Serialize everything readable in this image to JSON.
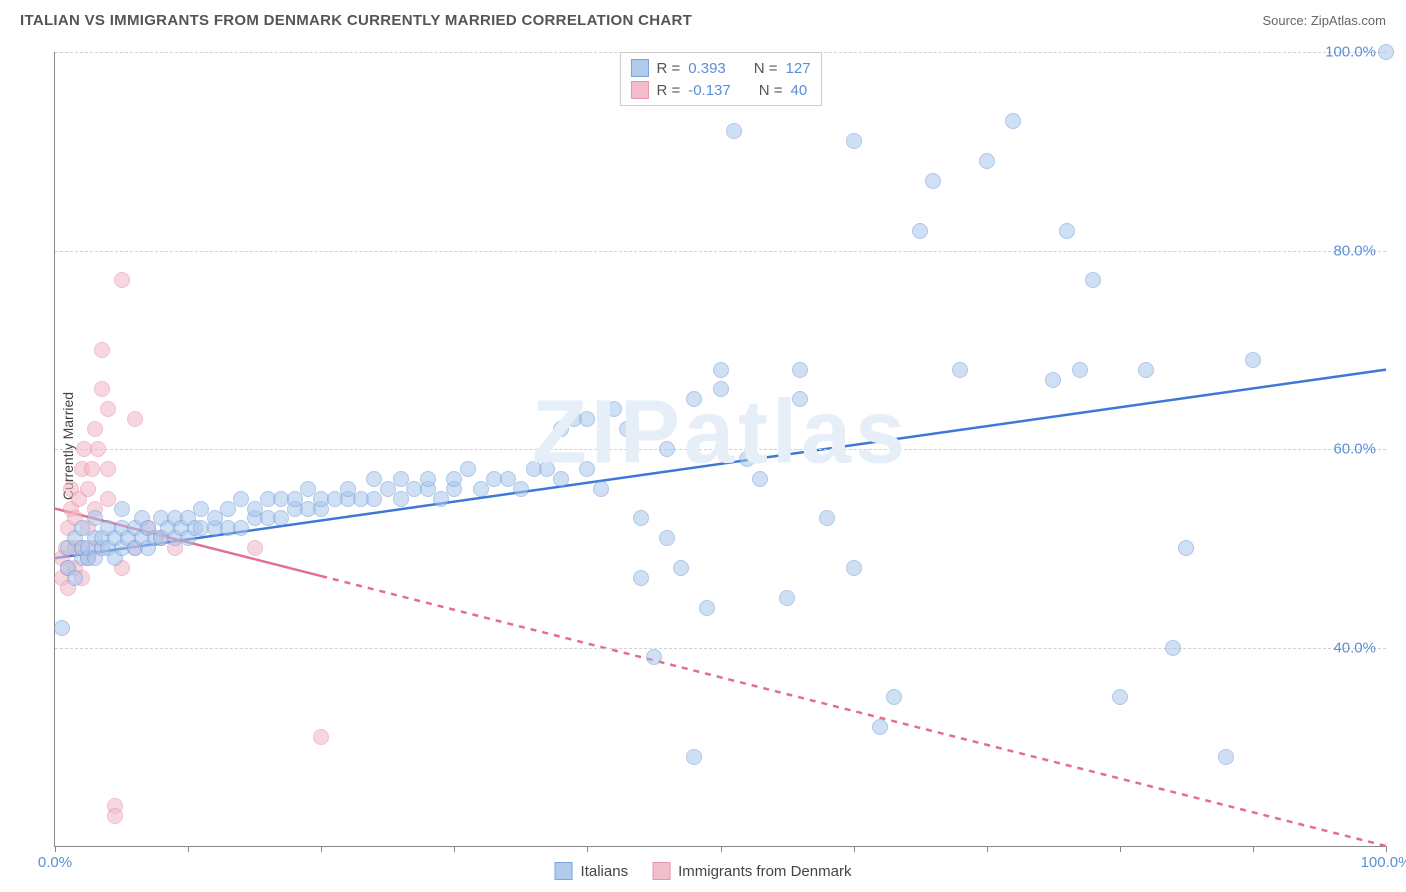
{
  "header": {
    "title": "ITALIAN VS IMMIGRANTS FROM DENMARK CURRENTLY MARRIED CORRELATION CHART",
    "source_prefix": "Source: ",
    "source_name": "ZipAtlas.com"
  },
  "ylabel": "Currently Married",
  "watermark": {
    "text": "ZIPatlas",
    "color": "#e6eef8"
  },
  "chart": {
    "type": "scatter",
    "xlim": [
      0,
      100
    ],
    "ylim": [
      20,
      100
    ],
    "background_color": "#ffffff",
    "grid_color": "#d0d0d0",
    "axis_color": "#888888",
    "point_radius": 8,
    "point_stroke_width": 1.2,
    "trend_line_width": 2.5,
    "xticks": [
      0,
      10,
      20,
      30,
      40,
      50,
      60,
      70,
      80,
      90,
      100
    ],
    "xtick_labels": {
      "0": "0.0%",
      "100": "100.0%"
    },
    "yticks": [
      40,
      60,
      80,
      100
    ],
    "ytick_labels": {
      "40": "40.0%",
      "60": "60.0%",
      "80": "80.0%",
      "100": "100.0%"
    },
    "tick_label_color": "#5b8fd6",
    "tick_label_fontsize": 15
  },
  "series": {
    "italians": {
      "label": "Italians",
      "fill_color": "#a9c6ec",
      "stroke_color": "#6e9bd8",
      "fill_opacity": 0.55,
      "R": "0.393",
      "N": "127",
      "trend": {
        "x1": 0,
        "y1": 49,
        "x2": 100,
        "y2": 68,
        "solid_until_x": 100,
        "color": "#3d78d6"
      },
      "points": [
        [
          0.5,
          42
        ],
        [
          1,
          48
        ],
        [
          1,
          50
        ],
        [
          1.5,
          47
        ],
        [
          1.5,
          51
        ],
        [
          2,
          49
        ],
        [
          2,
          50
        ],
        [
          2,
          52
        ],
        [
          2.5,
          49
        ],
        [
          2.5,
          50
        ],
        [
          3,
          49
        ],
        [
          3,
          51
        ],
        [
          3,
          53
        ],
        [
          3.5,
          50
        ],
        [
          3.5,
          51
        ],
        [
          4,
          50
        ],
        [
          4,
          52
        ],
        [
          4.5,
          49
        ],
        [
          4.5,
          51
        ],
        [
          5,
          50
        ],
        [
          5,
          52
        ],
        [
          5,
          54
        ],
        [
          5.5,
          51
        ],
        [
          6,
          50
        ],
        [
          6,
          52
        ],
        [
          6.5,
          51
        ],
        [
          6.5,
          53
        ],
        [
          7,
          50
        ],
        [
          7,
          52
        ],
        [
          7.5,
          51
        ],
        [
          8,
          51
        ],
        [
          8,
          53
        ],
        [
          8.5,
          52
        ],
        [
          9,
          51
        ],
        [
          9,
          53
        ],
        [
          9.5,
          52
        ],
        [
          10,
          51
        ],
        [
          10,
          53
        ],
        [
          10.5,
          52
        ],
        [
          11,
          52
        ],
        [
          11,
          54
        ],
        [
          12,
          52
        ],
        [
          12,
          53
        ],
        [
          13,
          52
        ],
        [
          13,
          54
        ],
        [
          14,
          52
        ],
        [
          14,
          55
        ],
        [
          15,
          53
        ],
        [
          15,
          54
        ],
        [
          16,
          53
        ],
        [
          16,
          55
        ],
        [
          17,
          53
        ],
        [
          17,
          55
        ],
        [
          18,
          54
        ],
        [
          18,
          55
        ],
        [
          19,
          54
        ],
        [
          19,
          56
        ],
        [
          20,
          54
        ],
        [
          20,
          55
        ],
        [
          21,
          55
        ],
        [
          22,
          55
        ],
        [
          22,
          56
        ],
        [
          23,
          55
        ],
        [
          24,
          55
        ],
        [
          24,
          57
        ],
        [
          25,
          56
        ],
        [
          26,
          55
        ],
        [
          26,
          57
        ],
        [
          27,
          56
        ],
        [
          28,
          56
        ],
        [
          28,
          57
        ],
        [
          29,
          55
        ],
        [
          30,
          56
        ],
        [
          30,
          57
        ],
        [
          31,
          58
        ],
        [
          32,
          56
        ],
        [
          33,
          57
        ],
        [
          34,
          57
        ],
        [
          35,
          56
        ],
        [
          36,
          58
        ],
        [
          37,
          58
        ],
        [
          38,
          57
        ],
        [
          38,
          62
        ],
        [
          39,
          63
        ],
        [
          40,
          58
        ],
        [
          40,
          63
        ],
        [
          41,
          56
        ],
        [
          42,
          64
        ],
        [
          43,
          62
        ],
        [
          44,
          47
        ],
        [
          44,
          53
        ],
        [
          45,
          39
        ],
        [
          46,
          51
        ],
        [
          46,
          60
        ],
        [
          47,
          48
        ],
        [
          48,
          29
        ],
        [
          48,
          65
        ],
        [
          49,
          44
        ],
        [
          50,
          66
        ],
        [
          50,
          68
        ],
        [
          51,
          92
        ],
        [
          52,
          59
        ],
        [
          53,
          57
        ],
        [
          55,
          45
        ],
        [
          56,
          65
        ],
        [
          56,
          68
        ],
        [
          58,
          53
        ],
        [
          60,
          48
        ],
        [
          60,
          91
        ],
        [
          62,
          32
        ],
        [
          63,
          35
        ],
        [
          65,
          82
        ],
        [
          66,
          87
        ],
        [
          68,
          68
        ],
        [
          70,
          89
        ],
        [
          72,
          93
        ],
        [
          75,
          67
        ],
        [
          76,
          82
        ],
        [
          77,
          68
        ],
        [
          78,
          77
        ],
        [
          80,
          35
        ],
        [
          82,
          68
        ],
        [
          84,
          40
        ],
        [
          85,
          50
        ],
        [
          88,
          29
        ],
        [
          90,
          69
        ],
        [
          100,
          100
        ]
      ]
    },
    "denmark": {
      "label": "Immigrants from Denmark",
      "fill_color": "#f2b8c6",
      "stroke_color": "#e68aa3",
      "fill_opacity": 0.55,
      "R": "-0.137",
      "N": "40",
      "trend": {
        "x1": 0,
        "y1": 54,
        "x2": 100,
        "y2": 20,
        "solid_until_x": 20,
        "color": "#e36f8f"
      },
      "points": [
        [
          0.5,
          47
        ],
        [
          0.5,
          49
        ],
        [
          0.8,
          50
        ],
        [
          1,
          46
        ],
        [
          1,
          48
        ],
        [
          1,
          52
        ],
        [
          1.2,
          54
        ],
        [
          1.2,
          56
        ],
        [
          1.5,
          48
        ],
        [
          1.5,
          50
        ],
        [
          1.5,
          53
        ],
        [
          1.8,
          55
        ],
        [
          2,
          47
        ],
        [
          2,
          50
        ],
        [
          2,
          58
        ],
        [
          2.2,
          60
        ],
        [
          2.5,
          49
        ],
        [
          2.5,
          52
        ],
        [
          2.5,
          56
        ],
        [
          2.8,
          58
        ],
        [
          3,
          50
        ],
        [
          3,
          54
        ],
        [
          3,
          62
        ],
        [
          3.2,
          60
        ],
        [
          3.5,
          66
        ],
        [
          3.5,
          70
        ],
        [
          4,
          55
        ],
        [
          4,
          58
        ],
        [
          4,
          64
        ],
        [
          4.5,
          24
        ],
        [
          4.5,
          23
        ],
        [
          5,
          77
        ],
        [
          5,
          48
        ],
        [
          6,
          50
        ],
        [
          6,
          63
        ],
        [
          7,
          52
        ],
        [
          8,
          51
        ],
        [
          9,
          50
        ],
        [
          15,
          50
        ],
        [
          20,
          31
        ]
      ]
    }
  },
  "top_legend": {
    "r_label": "R =",
    "n_label": "N =",
    "value_color": "#5b8fd6",
    "label_color": "#555555"
  }
}
